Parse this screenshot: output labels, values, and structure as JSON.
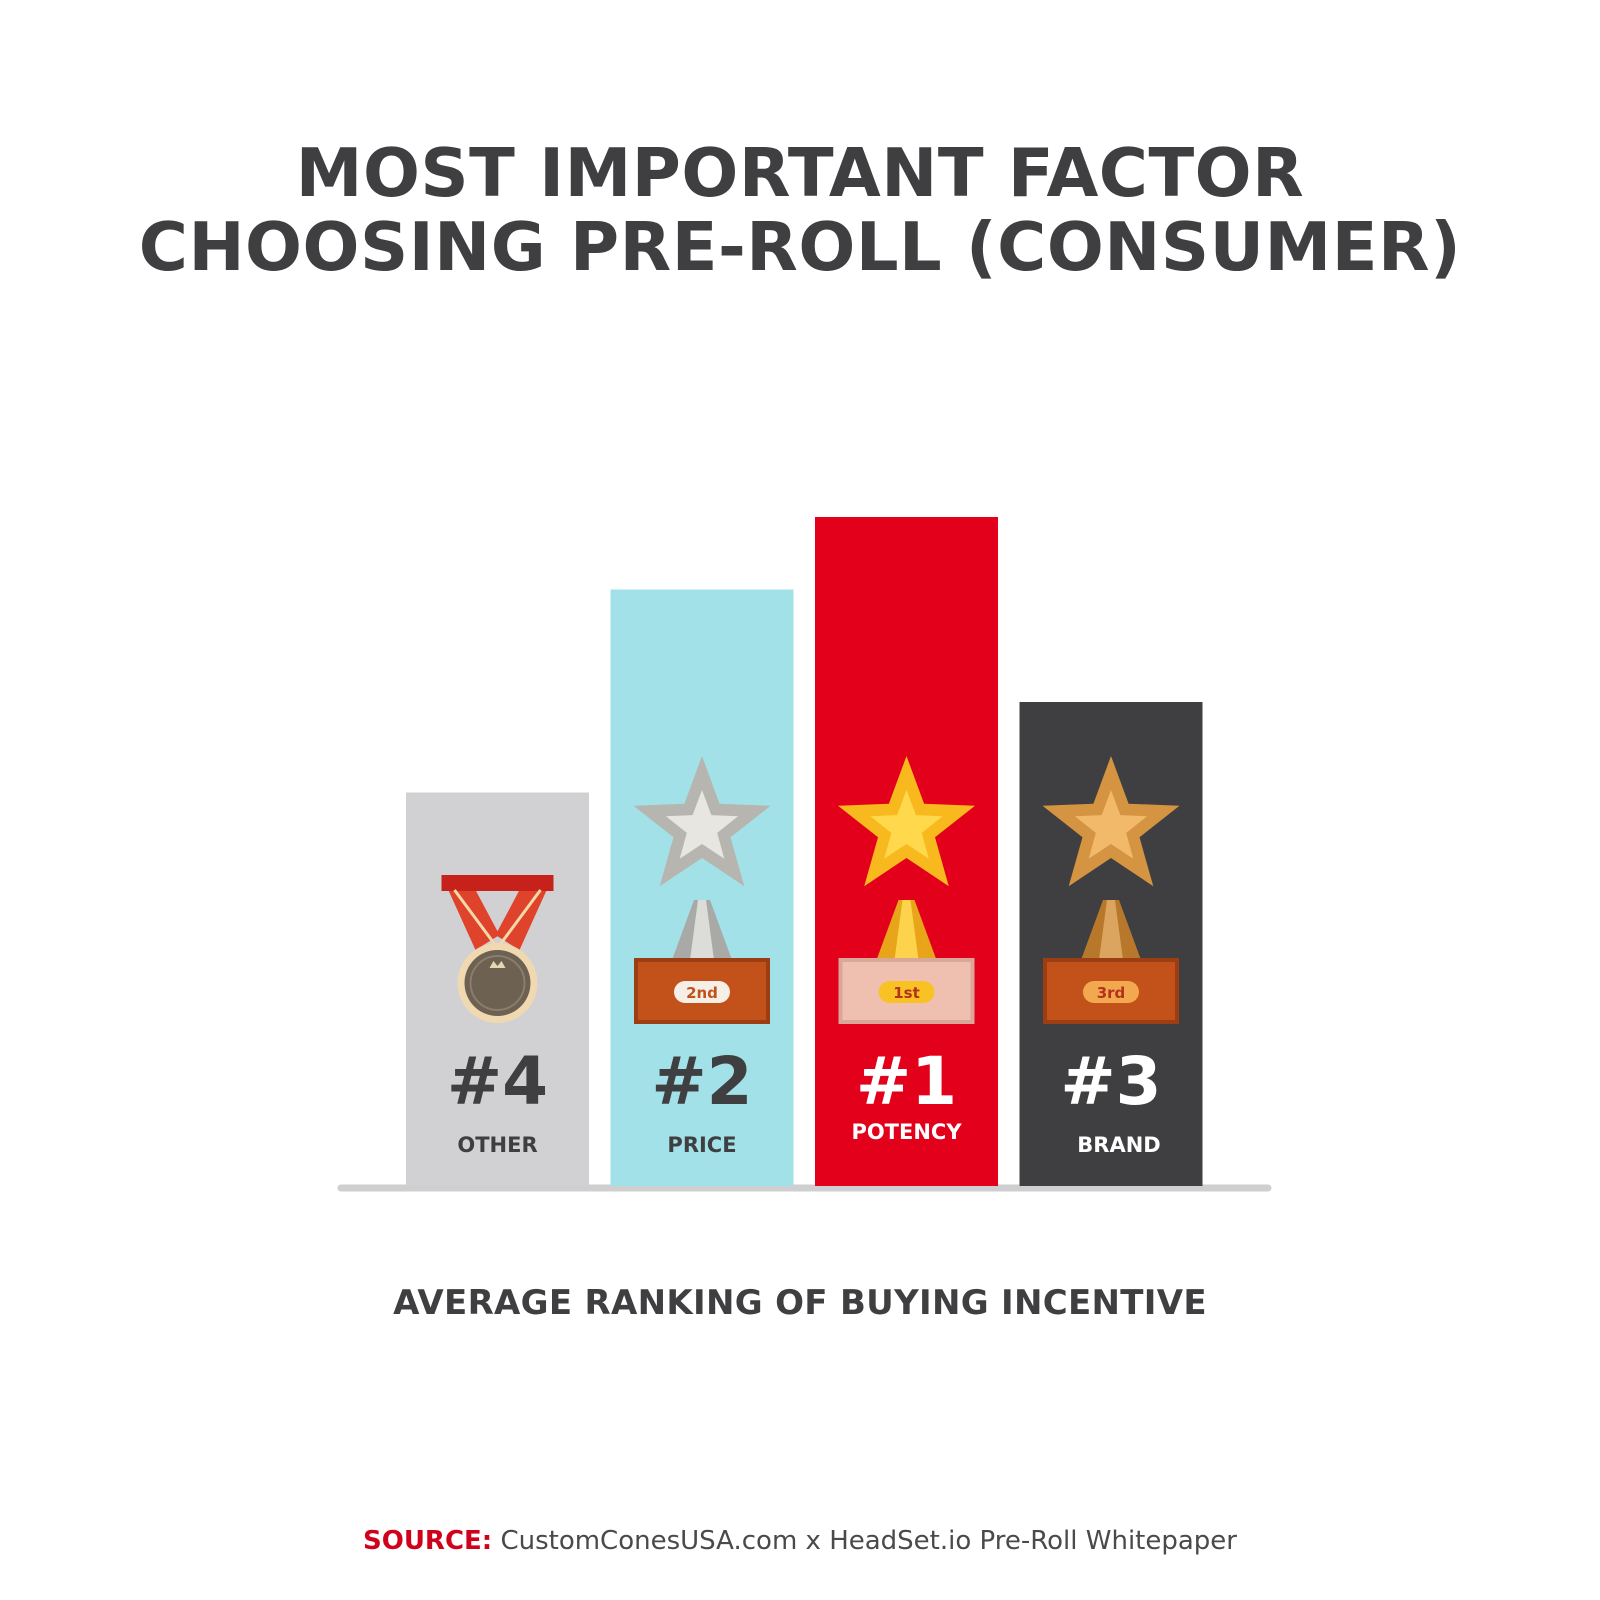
{
  "title_lines": [
    "MOST IMPORTANT FACTOR",
    "CHOOSING PRE-ROLL (CONSUMER)"
  ],
  "subtitle": "AVERAGE RANKING OF BUYING INCENTIVE",
  "source": {
    "label": "SOURCE:",
    "text": " CustomConesUSA.com x HeadSet.io Pre-Roll Whitepaper"
  },
  "colors": {
    "text_dark": "#3f3f41",
    "source_label": "#d0021b",
    "baseline": "#cfcfd1"
  },
  "chart_data": {
    "type": "bar",
    "categories": [
      "OTHER",
      "PRICE",
      "POTENCY",
      "BRAND"
    ],
    "ranks": [
      "#4",
      "#2",
      "#1",
      "#3"
    ],
    "values": [
      4,
      2,
      1,
      3
    ],
    "bar_colors": [
      "#d1d1d3",
      "#a3e1e8",
      "#e3001b",
      "#3f3f41"
    ],
    "label_colors": [
      "#3f3f41",
      "#3f3f41",
      "#ffffff",
      "#ffffff"
    ],
    "icons": [
      "medal-icon",
      "silver-trophy-icon",
      "gold-trophy-icon",
      "bronze-trophy-icon"
    ],
    "plaque_texts": [
      "",
      "2nd",
      "1st",
      "3rd"
    ],
    "title": "MOST IMPORTANT FACTOR CHOOSING PRE-ROLL (CONSUMER)",
    "xlabel": "AVERAGE RANKING OF BUYING INCENTIVE"
  }
}
